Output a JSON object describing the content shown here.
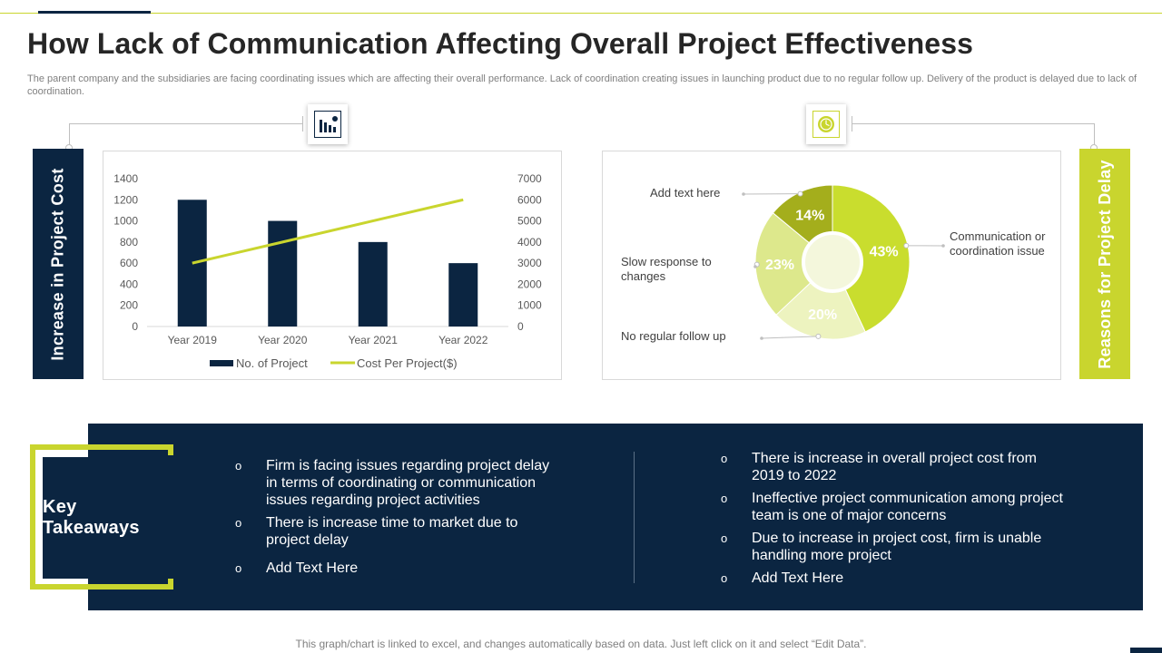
{
  "title": "How Lack of Communication Affecting Overall Project Effectiveness",
  "subtitle": "The parent company and the subsidiaries are facing coordinating issues which are affecting their overall performance. Lack of coordination creating issues in launching product due  to no regular follow up. Delivery of the product is delayed due to lack of coordination.",
  "left_section_label": "Increase in Project Cost",
  "right_section_label": "Reasons for Project Delay",
  "colors": {
    "navy": "#0b2541",
    "lime": "#c9d52e",
    "grey_text": "#7f7f7f"
  },
  "icons": {
    "left": "bar-chart-decline-icon",
    "right": "clock-icon"
  },
  "chart_data": [
    {
      "type": "bar",
      "combo_line": true,
      "categories": [
        "Year 2019",
        "Year 2020",
        "Year 2021",
        "Year 2022"
      ],
      "series": [
        {
          "name": "No. of Project",
          "kind": "bar",
          "axis": "left",
          "color": "#0b2541",
          "values": [
            1200,
            1000,
            800,
            600
          ]
        },
        {
          "name": "Cost Per Project($)",
          "kind": "line",
          "axis": "right",
          "color": "#c9d52e",
          "values": [
            3000,
            4000,
            5000,
            6000
          ]
        }
      ],
      "left_ylim": [
        0,
        1400
      ],
      "left_ticks": [
        "0",
        "200",
        "400",
        "600",
        "800",
        "1000",
        "1200",
        "1400"
      ],
      "right_ylim": [
        0,
        7000
      ],
      "right_ticks": [
        "0",
        "1000",
        "2000",
        "3000",
        "4000",
        "5000",
        "6000",
        "7000"
      ],
      "title": "",
      "xlabel": "",
      "ylabel": "",
      "legend": "bottom"
    },
    {
      "type": "pie",
      "donut": true,
      "slices": [
        {
          "label": "Communication or coordination issue",
          "value": 43,
          "display": "43%",
          "color": "#c9dd2e"
        },
        {
          "label": "No regular follow up",
          "value": 20,
          "display": "20%",
          "color": "#edf3bf"
        },
        {
          "label": "Slow response to changes",
          "value": 23,
          "display": "23%",
          "color": "#dde88c"
        },
        {
          "label": "Add text here",
          "value": 14,
          "display": "14%",
          "color": "#a4ae1c"
        }
      ]
    }
  ],
  "key_takeaways": {
    "heading": "Key Takeaways",
    "bullet_glyph": "o",
    "left": [
      "Firm is facing issues regarding project delay in terms of coordinating or communication issues regarding project activities",
      "There is increase time to market due to project delay",
      "Add Text Here"
    ],
    "right": [
      "There is increase in overall project cost from 2019 to 2022",
      "Ineffective  project communication among project team is one of major concerns",
      "Due to increase in project cost, firm is unable handling more project",
      "Add Text Here"
    ]
  },
  "footer": "This graph/chart is linked to excel, and changes automatically based on data. Just left click on it and select “Edit Data”."
}
